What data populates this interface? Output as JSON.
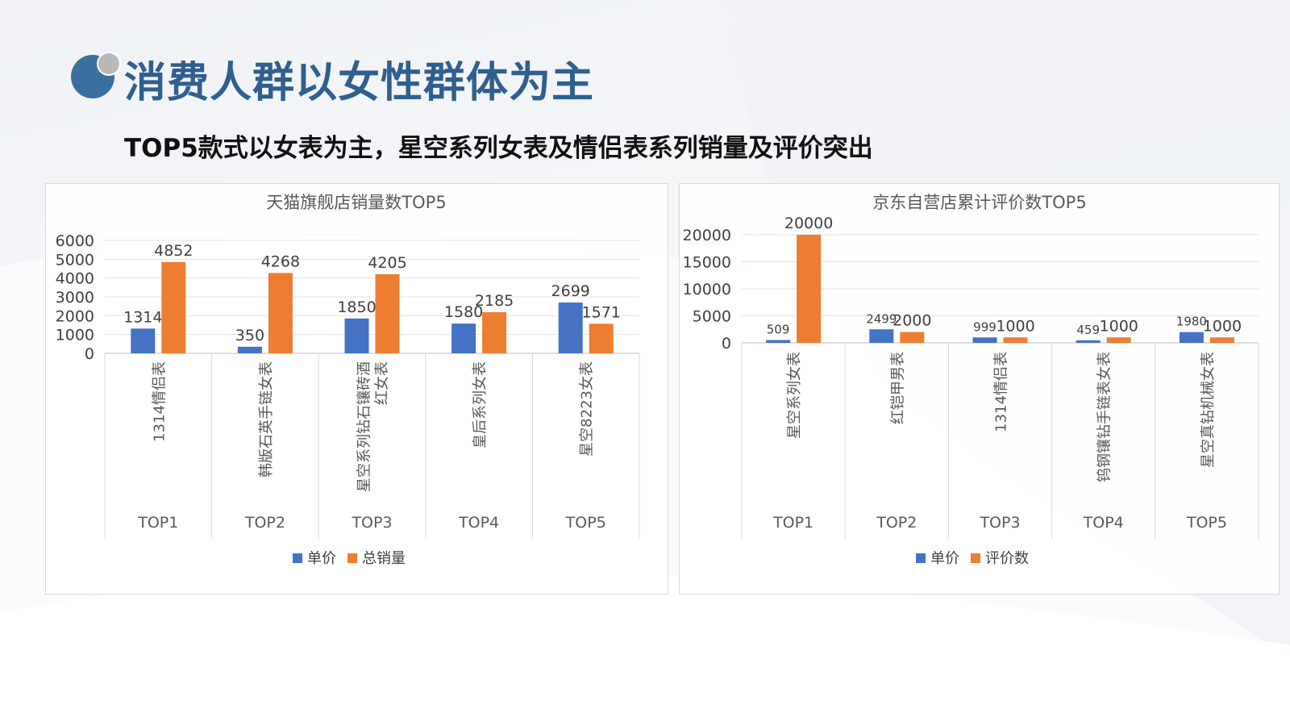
{
  "page": {
    "title": "消费人群以女性群体为主",
    "subtitle": "TOP5款式以女表为主，星空系列女表及情侣表系列销量及评价突出"
  },
  "colors": {
    "series_a": "#4472c4",
    "series_b": "#ed7d31",
    "title": "#2f5f8e"
  },
  "chart_data": [
    {
      "type": "bar",
      "title": "天猫旗舰店销量数TOP5",
      "groups": [
        "TOP1",
        "TOP2",
        "TOP3",
        "TOP4",
        "TOP5"
      ],
      "categories": [
        "1314情侣表",
        "韩版石英手链女表",
        "星空系列钻石镶砖酒红女表",
        "皇后系列女表",
        "星空8223女表"
      ],
      "category_lines": [
        [
          "1314情侣表"
        ],
        [
          "韩版石英手链女表"
        ],
        [
          "星空系列钻石镶砖酒",
          "红女表"
        ],
        [
          "皇后系列女表"
        ],
        [
          "星空8223女表"
        ]
      ],
      "series": [
        {
          "name": "单价",
          "values": [
            1314,
            350,
            1850,
            1580,
            2699
          ]
        },
        {
          "name": "总销量",
          "values": [
            4852,
            4268,
            4205,
            2185,
            1571
          ]
        }
      ],
      "ylim": [
        0,
        6000
      ],
      "yticks": [
        0,
        1000,
        2000,
        3000,
        4000,
        5000,
        6000
      ],
      "grid": true,
      "legend": "bottom"
    },
    {
      "type": "bar",
      "title": "京东自营店累计评价数TOP5",
      "groups": [
        "TOP1",
        "TOP2",
        "TOP3",
        "TOP4",
        "TOP5"
      ],
      "categories": [
        "星空系列女表",
        "红铠甲男表",
        "1314情侣表",
        "钨钢镶钻手链表女表",
        "星空真钻机械女表"
      ],
      "category_lines": [
        [
          "星空系列女表"
        ],
        [
          "红铠甲男表"
        ],
        [
          "1314情侣表"
        ],
        [
          "钨钢镶钻手链表女表"
        ],
        [
          "星空真钻机械女表"
        ]
      ],
      "series": [
        {
          "name": "单价",
          "values": [
            509,
            2499,
            999,
            459,
            1980
          ]
        },
        {
          "name": "评价数",
          "values": [
            20000,
            2000,
            1000,
            1000,
            1000
          ]
        }
      ],
      "ylim": [
        0,
        20000
      ],
      "yticks": [
        0,
        5000,
        10000,
        15000,
        20000
      ],
      "grid": true,
      "legend": "bottom"
    }
  ]
}
